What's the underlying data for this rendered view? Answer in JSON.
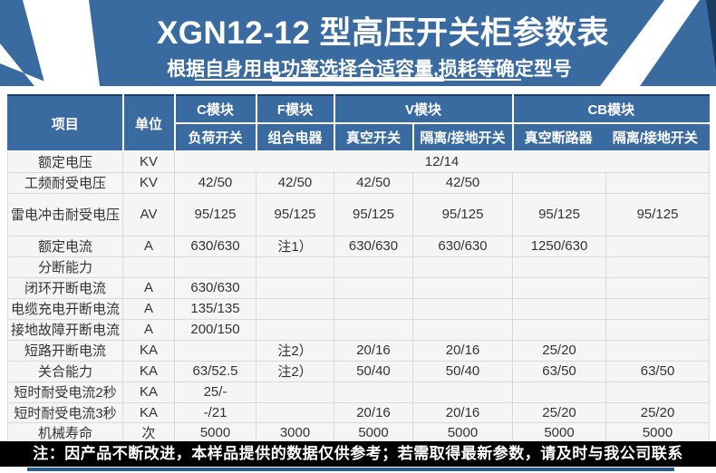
{
  "banner": {
    "title": "XGN12-12 型高压开关柜参数表",
    "subtitle": "根据自身用电功率选择合适容量,损耗等确定型号"
  },
  "table": {
    "header": {
      "item": "项目",
      "unit": "单位",
      "groups": [
        {
          "label": "C模块",
          "subs": [
            "负荷开关"
          ]
        },
        {
          "label": "F模块",
          "subs": [
            "组合电器"
          ]
        },
        {
          "label": "V模块",
          "subs": [
            "真空开关",
            "隔离/接地开关"
          ]
        },
        {
          "label": "CB模块",
          "subs": [
            "真空断路器",
            "隔离/接地开关"
          ]
        }
      ]
    },
    "rows": [
      {
        "item": "额定电压",
        "unit": "KV",
        "merged": "12/14"
      },
      {
        "item": "工频耐受电压",
        "unit": "KV",
        "values": [
          "42/50",
          "42/50",
          "42/50",
          "42/50",
          "",
          ""
        ]
      },
      {
        "item": "雷电冲击耐受电压",
        "unit": "AV",
        "tall": true,
        "values": [
          "95/125",
          "95/125",
          "95/125",
          "95/125",
          "95/125",
          "95/125"
        ]
      },
      {
        "item": "额定电流",
        "unit": "A",
        "values": [
          "630/630",
          "注1）",
          "630/630",
          "630/630",
          "1250/630",
          ""
        ]
      },
      {
        "item": "分断能力",
        "unit": "",
        "values": [
          "",
          "",
          "",
          "",
          "",
          ""
        ]
      },
      {
        "item": "闭环开断电流",
        "unit": "A",
        "values": [
          "630/630",
          "",
          "",
          "",
          "",
          ""
        ]
      },
      {
        "item": "电缆充电开断电流",
        "unit": "A",
        "values": [
          "135/135",
          "",
          "",
          "",
          "",
          ""
        ]
      },
      {
        "item": "接地故障开断电流",
        "unit": "A",
        "values": [
          "200/150",
          "",
          "",
          "",
          "",
          ""
        ]
      },
      {
        "item": "短路开断电流",
        "unit": "KA",
        "values": [
          "",
          "注2）",
          "20/16",
          "20/16",
          "25/20",
          ""
        ]
      },
      {
        "item": "关合能力",
        "unit": "KA",
        "values": [
          "63/52.5",
          "注2）",
          "50/40",
          "50/40",
          "63/50",
          "63/50"
        ]
      },
      {
        "item": "短时耐受电流2秒",
        "unit": "KA",
        "values": [
          "25/-",
          "",
          "",
          "",
          "",
          ""
        ]
      },
      {
        "item": "短时耐受电流3秒",
        "unit": "KA",
        "short": true,
        "values": [
          "-/21",
          "",
          "20/16",
          "20/16",
          "25/20",
          "25/20"
        ]
      },
      {
        "item": "机械寿命",
        "unit": "次",
        "values": [
          "5000",
          "3000",
          "5000",
          "5000",
          "5000",
          "5000"
        ]
      }
    ]
  },
  "footer": {
    "note": "注：因产品不断改进，本样品提供的数据仅供参考；若需取得最新参数，请及时与我公司联系"
  },
  "colors": {
    "banner_blue": "#3a6ba0",
    "navy_accent": "#1b3d62",
    "body_bg": "#f5f5f3",
    "grid_line": "#d9d9d9",
    "footer_bg": "#000000",
    "bottom_line": "#2b5a88"
  }
}
